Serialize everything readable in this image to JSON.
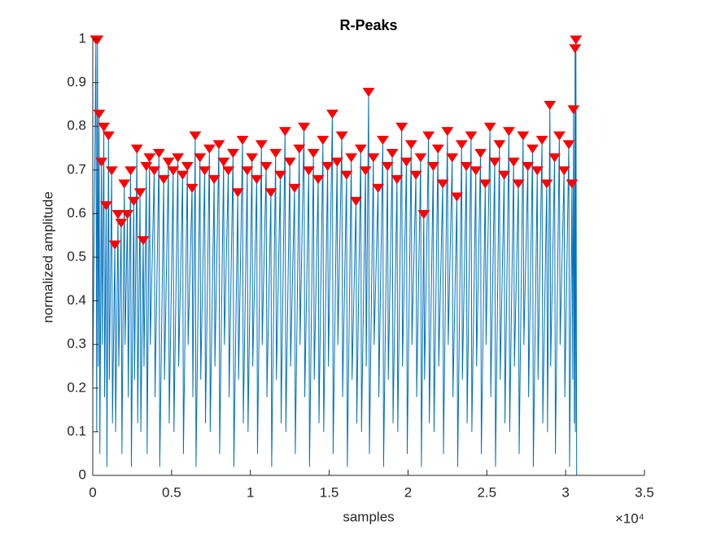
{
  "chart_data": {
    "type": "line",
    "title": "R-Peaks",
    "x_label": "samples",
    "y_label": "normalized amplitude",
    "x_exponent_label": "×10⁴",
    "xlim": [
      0,
      35000
    ],
    "xticks": [
      0,
      {
        "value": 5000,
        "label": "0.5"
      },
      {
        "value": 10000,
        "label": "1"
      },
      {
        "value": 15000,
        "label": "1.5"
      },
      {
        "value": 20000,
        "label": "2"
      },
      {
        "value": 25000,
        "label": "2.5"
      },
      {
        "value": 30000,
        "label": "3"
      },
      {
        "value": 35000,
        "label": "3.5"
      }
    ],
    "ylim": [
      0,
      1
    ],
    "yticks": [
      0,
      0.1,
      0.2,
      0.3,
      0.4,
      0.5,
      0.6,
      0.7,
      0.8,
      0.9,
      1
    ],
    "grid": false,
    "series": [
      {
        "type": "line",
        "color": "#0072bd",
        "x": [
          0,
          200,
          250,
          300,
          350,
          400,
          450,
          550,
          600,
          700,
          750,
          850,
          900,
          1000,
          1050,
          1200,
          1250,
          1400,
          1450,
          1600,
          1650,
          1800,
          1850,
          2000,
          2050,
          2200,
          2250,
          2400,
          2450,
          2600,
          2650,
          2800,
          2850,
          3000,
          3050,
          3200,
          3250,
          3400,
          3450,
          3600,
          3650,
          3900,
          3950,
          4200,
          4250,
          4500,
          4550,
          4800,
          4850,
          5100,
          5150,
          5400,
          5450,
          5700,
          5750,
          6000,
          6050,
          6300,
          6350,
          6500,
          6550,
          6800,
          6850,
          7100,
          7150,
          7400,
          7450,
          7700,
          7750,
          8000,
          8050,
          8300,
          8350,
          8600,
          8650,
          8900,
          8950,
          9200,
          9250,
          9500,
          9550,
          9800,
          9850,
          10100,
          10150,
          10400,
          10450,
          10700,
          10750,
          11000,
          11050,
          11300,
          11350,
          11600,
          11650,
          11900,
          11950,
          12200,
          12250,
          12500,
          12550,
          12800,
          12850,
          13100,
          13150,
          13400,
          13450,
          13700,
          13750,
          14000,
          14050,
          14300,
          14350,
          14600,
          14650,
          14900,
          14950,
          15200,
          15250,
          15500,
          15550,
          15800,
          15850,
          16100,
          16150,
          16400,
          16450,
          16700,
          16750,
          17000,
          17050,
          17300,
          17350,
          17500,
          17550,
          17800,
          17850,
          18100,
          18150,
          18400,
          18450,
          18700,
          18750,
          19000,
          19050,
          19300,
          19350,
          19600,
          19650,
          19900,
          19950,
          20200,
          20250,
          20500,
          20550,
          20800,
          20850,
          21000,
          21050,
          21300,
          21350,
          21600,
          21650,
          21900,
          21950,
          22200,
          22250,
          22500,
          22550,
          22800,
          22850,
          23100,
          23150,
          23400,
          23450,
          23700,
          23750,
          24000,
          24050,
          24300,
          24350,
          24600,
          24650,
          24900,
          24950,
          25200,
          25250,
          25500,
          25550,
          25800,
          25850,
          26100,
          26150,
          26400,
          26450,
          26700,
          26750,
          27000,
          27050,
          27300,
          27350,
          27600,
          27650,
          27900,
          27950,
          28200,
          28250,
          28500,
          28550,
          28800,
          28850,
          29000,
          29050,
          29300,
          29350,
          29600,
          29650,
          29900,
          29950,
          30200,
          30250,
          30400,
          30450,
          30500,
          30550,
          30600,
          30620,
          30650,
          30700
        ],
        "values": [
          0.2,
          1,
          0.1,
          1,
          0.25,
          0.83,
          0.05,
          0.72,
          0.3,
          0.8,
          0.18,
          0.62,
          0.02,
          0.78,
          0.22,
          0.7,
          0.12,
          0.53,
          0.1,
          0.6,
          0.25,
          0.58,
          0.05,
          0.67,
          0.3,
          0.6,
          0.18,
          0.7,
          0.02,
          0.63,
          0.22,
          0.75,
          0.12,
          0.65,
          0.1,
          0.54,
          0.25,
          0.71,
          0.05,
          0.73,
          0.3,
          0.7,
          0.18,
          0.74,
          0.02,
          0.68,
          0.22,
          0.72,
          0.12,
          0.7,
          0.1,
          0.73,
          0.25,
          0.69,
          0.05,
          0.71,
          0.3,
          0.66,
          0.18,
          0.78,
          0.02,
          0.73,
          0.22,
          0.7,
          0.12,
          0.75,
          0.1,
          0.68,
          0.25,
          0.76,
          0.05,
          0.72,
          0.3,
          0.7,
          0.18,
          0.74,
          0.02,
          0.65,
          0.22,
          0.77,
          0.12,
          0.7,
          0.1,
          0.73,
          0.25,
          0.68,
          0.05,
          0.76,
          0.3,
          0.71,
          0.18,
          0.65,
          0.02,
          0.74,
          0.22,
          0.69,
          0.12,
          0.79,
          0.1,
          0.72,
          0.25,
          0.66,
          0.05,
          0.75,
          0.3,
          0.8,
          0.18,
          0.7,
          0.02,
          0.74,
          0.22,
          0.68,
          0.12,
          0.77,
          0.1,
          0.71,
          0.25,
          0.83,
          0.05,
          0.72,
          0.3,
          0.78,
          0.18,
          0.69,
          0.02,
          0.73,
          0.22,
          0.63,
          0.12,
          0.75,
          0.1,
          0.7,
          0.25,
          0.88,
          0.05,
          0.73,
          0.3,
          0.66,
          0.18,
          0.77,
          0.02,
          0.71,
          0.22,
          0.74,
          0.12,
          0.68,
          0.1,
          0.8,
          0.25,
          0.72,
          0.05,
          0.76,
          0.3,
          0.69,
          0.18,
          0.73,
          0.02,
          0.6,
          0.22,
          0.78,
          0.12,
          0.71,
          0.1,
          0.75,
          0.25,
          0.67,
          0.05,
          0.79,
          0.3,
          0.73,
          0.18,
          0.64,
          0.02,
          0.76,
          0.22,
          0.71,
          0.12,
          0.78,
          0.1,
          0.7,
          0.25,
          0.74,
          0.05,
          0.67,
          0.3,
          0.8,
          0.18,
          0.72,
          0.02,
          0.76,
          0.22,
          0.69,
          0.12,
          0.79,
          0.1,
          0.72,
          0.25,
          0.67,
          0.05,
          0.78,
          0.3,
          0.71,
          0.18,
          0.75,
          0.02,
          0.7,
          0.22,
          0.77,
          0.12,
          0.67,
          0.1,
          0.85,
          0.25,
          0.73,
          0.05,
          0.78,
          0.3,
          0.7,
          0.18,
          0.76,
          0.02,
          0.67,
          0.22,
          0.84,
          0.12,
          0.98,
          0.1,
          1,
          0
        ]
      },
      {
        "type": "scatter",
        "marker": "triangle-down",
        "color": "#ff0000",
        "x": [
          200,
          300,
          400,
          550,
          700,
          850,
          1000,
          1200,
          1400,
          1600,
          1800,
          2000,
          2200,
          2400,
          2600,
          2800,
          3000,
          3200,
          3400,
          3600,
          3900,
          4200,
          4500,
          4800,
          5100,
          5400,
          5700,
          6000,
          6300,
          6500,
          6800,
          7100,
          7400,
          7700,
          8000,
          8300,
          8600,
          8900,
          9200,
          9500,
          9800,
          10100,
          10400,
          10700,
          11000,
          11300,
          11600,
          11900,
          12200,
          12500,
          12800,
          13100,
          13400,
          13700,
          14000,
          14300,
          14600,
          14900,
          15200,
          15500,
          15800,
          16100,
          16400,
          16700,
          17000,
          17300,
          17500,
          17800,
          18100,
          18400,
          18700,
          19000,
          19300,
          19600,
          19900,
          20200,
          20500,
          20800,
          21000,
          21300,
          21600,
          21900,
          22200,
          22500,
          22800,
          23100,
          23400,
          23700,
          24000,
          24300,
          24600,
          24900,
          25200,
          25500,
          25800,
          26100,
          26400,
          26700,
          27000,
          27300,
          27600,
          27900,
          28200,
          28500,
          28800,
          29000,
          29300,
          29600,
          29900,
          30200,
          30400,
          30500,
          30600,
          30650
        ],
        "values": [
          1,
          1,
          0.83,
          0.72,
          0.8,
          0.62,
          0.78,
          0.7,
          0.53,
          0.6,
          0.58,
          0.67,
          0.6,
          0.7,
          0.63,
          0.75,
          0.65,
          0.54,
          0.71,
          0.73,
          0.7,
          0.74,
          0.68,
          0.72,
          0.7,
          0.73,
          0.69,
          0.71,
          0.66,
          0.78,
          0.73,
          0.7,
          0.75,
          0.68,
          0.76,
          0.72,
          0.7,
          0.74,
          0.65,
          0.77,
          0.7,
          0.73,
          0.68,
          0.76,
          0.71,
          0.65,
          0.74,
          0.69,
          0.79,
          0.72,
          0.66,
          0.75,
          0.8,
          0.7,
          0.74,
          0.68,
          0.77,
          0.71,
          0.83,
          0.72,
          0.78,
          0.69,
          0.73,
          0.63,
          0.75,
          0.7,
          0.88,
          0.73,
          0.66,
          0.77,
          0.71,
          0.74,
          0.68,
          0.8,
          0.72,
          0.76,
          0.69,
          0.73,
          0.6,
          0.78,
          0.71,
          0.75,
          0.67,
          0.79,
          0.73,
          0.64,
          0.76,
          0.71,
          0.78,
          0.7,
          0.74,
          0.67,
          0.8,
          0.72,
          0.76,
          0.69,
          0.79,
          0.72,
          0.67,
          0.78,
          0.71,
          0.75,
          0.7,
          0.77,
          0.67,
          0.85,
          0.73,
          0.78,
          0.7,
          0.76,
          0.67,
          0.84,
          0.98,
          1
        ]
      }
    ]
  }
}
